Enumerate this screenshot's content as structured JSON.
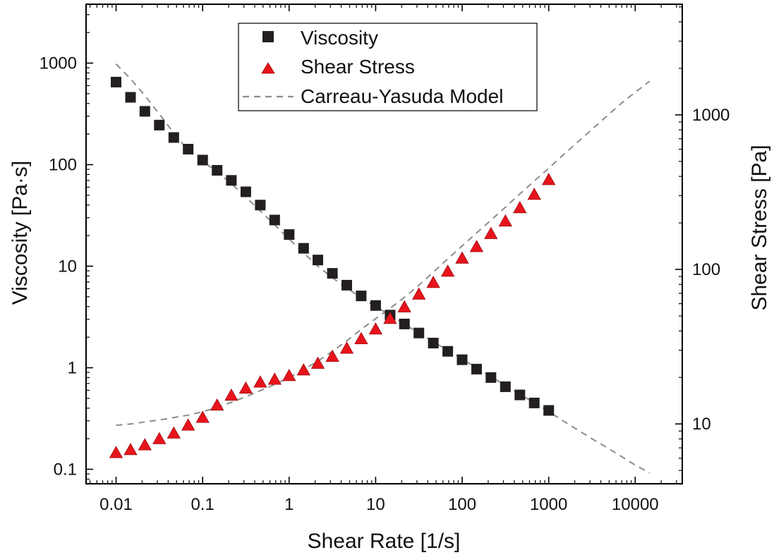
{
  "chart_data": {
    "type": "scatter",
    "x_scale": "log",
    "y_scale": "log",
    "xlabel": "Shear Rate [1/s]",
    "ylabel": "Viscosity [Pa·s]",
    "y2label": "Shear Stress [Pa]",
    "xlim": [
      0.0045,
      35000
    ],
    "ylim": [
      0.072,
      3800
    ],
    "y2lim": [
      4.1,
      5200
    ],
    "x_ticks": [
      {
        "value": 0.01,
        "label": "0.01"
      },
      {
        "value": 0.1,
        "label": "0.1"
      },
      {
        "value": 1,
        "label": "1"
      },
      {
        "value": 10,
        "label": "10"
      },
      {
        "value": 100,
        "label": "100"
      },
      {
        "value": 1000,
        "label": "1000"
      },
      {
        "value": 10000,
        "label": "10000"
      }
    ],
    "y_ticks": [
      {
        "value": 0.1,
        "label": "0.1"
      },
      {
        "value": 1,
        "label": "1"
      },
      {
        "value": 10,
        "label": "10"
      },
      {
        "value": 100,
        "label": "100"
      },
      {
        "value": 1000,
        "label": "1000"
      }
    ],
    "y2_ticks": [
      {
        "value": 10,
        "label": "10"
      },
      {
        "value": 100,
        "label": "100"
      },
      {
        "value": 1000,
        "label": "1000"
      }
    ],
    "legend": {
      "position": "top-center",
      "entries": [
        {
          "label": "Viscosity",
          "marker": "square",
          "color": "#231f20"
        },
        {
          "label": "Shear Stress",
          "marker": "triangle",
          "color": "#e8141c"
        },
        {
          "label": "Carreau-Yasuda Model",
          "marker": "dashed-line",
          "color": "#8c8c8c"
        }
      ]
    },
    "series": [
      {
        "name": "Viscosity",
        "axis": "left",
        "marker": "square",
        "color": "#231f20",
        "x": [
          0.01,
          0.0147,
          0.0215,
          0.0316,
          0.0464,
          0.0681,
          0.1,
          0.147,
          0.215,
          0.316,
          0.464,
          0.681,
          1,
          1.47,
          2.15,
          3.16,
          4.64,
          6.81,
          10,
          14.7,
          21.5,
          31.6,
          46.4,
          68.1,
          100,
          147,
          215,
          316,
          464,
          681,
          1000
        ],
        "values": [
          650,
          460,
          335,
          245,
          185,
          142,
          111,
          88,
          70,
          54,
          40,
          28.5,
          20.5,
          15,
          11.5,
          8.5,
          6.5,
          5.1,
          4.1,
          3.3,
          2.7,
          2.2,
          1.75,
          1.45,
          1.2,
          0.97,
          0.8,
          0.65,
          0.54,
          0.45,
          0.38
        ]
      },
      {
        "name": "Shear Stress",
        "axis": "right",
        "marker": "triangle",
        "color": "#e8141c",
        "x": [
          0.01,
          0.0147,
          0.0215,
          0.0316,
          0.0464,
          0.0681,
          0.1,
          0.147,
          0.215,
          0.316,
          0.464,
          0.681,
          1,
          1.47,
          2.15,
          3.16,
          4.64,
          6.81,
          10,
          14.7,
          21.5,
          31.6,
          46.4,
          68.1,
          100,
          147,
          215,
          316,
          464,
          681,
          1000
        ],
        "values": [
          6.5,
          6.8,
          7.3,
          8,
          8.7,
          9.8,
          11,
          13.2,
          15.3,
          17,
          18.6,
          19.4,
          20.5,
          22.3,
          24.6,
          27.3,
          30.8,
          35.5,
          41,
          48,
          57,
          69,
          82,
          97,
          118,
          140,
          170,
          205,
          250,
          305,
          380
        ]
      },
      {
        "name": "Carreau-Yasuda Model",
        "axis": "left",
        "style": "dashed-line",
        "color": "#8c8c8c",
        "x": [
          0.01,
          0.0147,
          0.0215,
          0.0316,
          0.0464,
          0.0681,
          0.1,
          0.147,
          0.215,
          0.316,
          0.464,
          0.681,
          1,
          1.47,
          2.15,
          3.16,
          4.64,
          6.81,
          10,
          14.7,
          21.5,
          31.6,
          46.4,
          68.1,
          100,
          147,
          215,
          316,
          464,
          681,
          1000,
          1470,
          2150,
          3160,
          4640,
          6810,
          10000,
          14700
        ],
        "values": [
          980,
          700,
          480,
          315,
          205,
          138,
          108,
          85,
          65,
          48,
          35,
          25.5,
          18.5,
          13.5,
          10,
          7.7,
          6.1,
          4.9,
          4.0,
          3.3,
          2.7,
          2.2,
          1.8,
          1.48,
          1.22,
          1.0,
          0.82,
          0.67,
          0.55,
          0.45,
          0.37,
          0.3,
          0.245,
          0.2,
          0.165,
          0.135,
          0.11,
          0.092
        ]
      },
      {
        "name": "Carreau-Yasuda Model",
        "axis": "right",
        "style": "dashed-line",
        "color": "#8c8c8c",
        "x": [
          0.01,
          0.0147,
          0.0215,
          0.0316,
          0.0464,
          0.0681,
          0.1,
          0.147,
          0.215,
          0.316,
          0.464,
          0.681,
          1,
          1.47,
          2.15,
          3.16,
          4.64,
          6.81,
          10,
          14.7,
          21.5,
          31.6,
          46.4,
          68.1,
          100,
          147,
          215,
          316,
          464,
          681,
          1000,
          1470,
          2150,
          3160,
          4640,
          6810,
          10000,
          14700
        ],
        "values": [
          9.8,
          10,
          10.3,
          10.6,
          11,
          11.4,
          12,
          12.8,
          13.8,
          15,
          16.4,
          18,
          20,
          22.5,
          25.5,
          29.5,
          34.5,
          41,
          48,
          56,
          66,
          79,
          96,
          117,
          142,
          172,
          208,
          253,
          308,
          373,
          452,
          550,
          665,
          805,
          975,
          1180,
          1400,
          1650
        ]
      }
    ]
  }
}
